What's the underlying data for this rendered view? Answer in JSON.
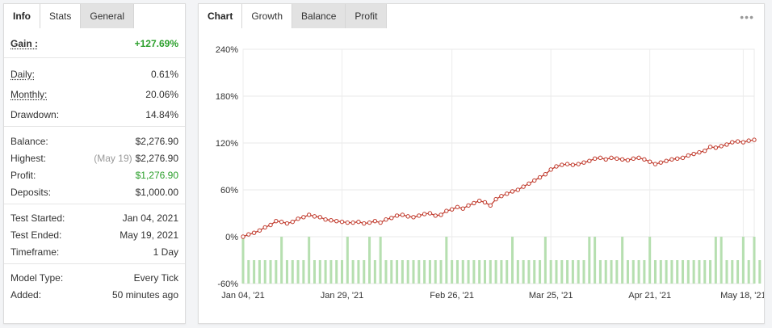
{
  "left_tabs": [
    {
      "label": "Info"
    },
    {
      "label": "Stats"
    },
    {
      "label": "General"
    }
  ],
  "stats": {
    "gain": {
      "label": "Gain :",
      "value": "+127.69%"
    },
    "daily": {
      "label": "Daily:",
      "value": "0.61%"
    },
    "monthly": {
      "label": "Monthly:",
      "value": "20.06%"
    },
    "drawdown": {
      "label": "Drawdown:",
      "value": "14.84%"
    },
    "balance": {
      "label": "Balance:",
      "value": "$2,276.90"
    },
    "highest": {
      "label": "Highest:",
      "note": "(May 19)",
      "value": "$2,276.90"
    },
    "profit": {
      "label": "Profit:",
      "value": "$1,276.90"
    },
    "deposits": {
      "label": "Deposits:",
      "value": "$1,000.00"
    },
    "test_started": {
      "label": "Test Started:",
      "value": "Jan 04, 2021"
    },
    "test_ended": {
      "label": "Test Ended:",
      "value": "May 19, 2021"
    },
    "timeframe": {
      "label": "Timeframe:",
      "value": "1 Day"
    },
    "model_type": {
      "label": "Model Type:",
      "value": "Every Tick"
    },
    "added": {
      "label": "Added:",
      "value": "50 minutes ago"
    }
  },
  "right_tabs": [
    {
      "label": "Chart"
    },
    {
      "label": "Growth"
    },
    {
      "label": "Balance"
    },
    {
      "label": "Profit"
    }
  ],
  "menu_icon": "ellipsis-icon",
  "colors": {
    "gain_green": "#2ca02c",
    "line_red": "#c0392b",
    "bar_green": "#b6dfb0"
  },
  "chart_data": {
    "type": "line",
    "ylim": [
      -60,
      240
    ],
    "yticks": [
      "240%",
      "180%",
      "120%",
      "60%",
      "0%",
      "-60%"
    ],
    "ytick_values": [
      240,
      180,
      120,
      60,
      0,
      -60
    ],
    "xtick_labels": [
      "Jan 04, '21",
      "Jan 29, '21",
      "Feb 26, '21",
      "Mar 25, '21",
      "Apr 21, '21",
      "May 18, '21"
    ],
    "xtick_index": [
      0,
      18,
      38,
      56,
      74,
      91
    ],
    "series": [
      {
        "type": "line",
        "values": [
          0,
          3,
          5,
          8,
          12,
          15,
          20,
          19,
          17,
          19,
          23,
          25,
          28,
          26,
          25,
          22,
          21,
          20,
          19,
          18,
          18,
          19,
          17,
          18,
          20,
          18,
          22,
          24,
          27,
          28,
          26,
          25,
          27,
          29,
          30,
          27,
          28,
          33,
          35,
          38,
          36,
          40,
          43,
          46,
          44,
          40,
          48,
          52,
          55,
          58,
          60,
          64,
          68,
          72,
          76,
          80,
          86,
          90,
          92,
          93,
          92,
          93,
          95,
          97,
          100,
          101,
          99,
          101,
          100,
          99,
          98,
          100,
          101,
          99,
          96,
          93,
          95,
          97,
          99,
          100,
          101,
          104,
          106,
          108,
          110,
          115,
          114,
          116,
          118,
          121,
          122,
          121,
          123,
          124
        ]
      },
      {
        "type": "bar",
        "values": [
          0,
          -30,
          -30,
          -30,
          -30,
          -30,
          -30,
          0,
          -30,
          -30,
          -30,
          -30,
          0,
          -30,
          -30,
          -30,
          -30,
          -30,
          -30,
          0,
          -30,
          -30,
          -30,
          0,
          -30,
          0,
          -30,
          -30,
          -30,
          -30,
          -30,
          -30,
          -30,
          -30,
          -30,
          -30,
          -30,
          0,
          -30,
          -30,
          -30,
          -30,
          -30,
          -30,
          -30,
          -30,
          -30,
          -30,
          -30,
          0,
          -30,
          -30,
          -30,
          -30,
          -30,
          0,
          -30,
          -30,
          -30,
          -30,
          -30,
          -30,
          -30,
          0,
          0,
          -30,
          -30,
          -30,
          -30,
          0,
          -30,
          -30,
          -30,
          -30,
          0,
          -30,
          -30,
          -30,
          -30,
          -30,
          -30,
          -30,
          -30,
          -30,
          -30,
          -30,
          0,
          0,
          -30,
          -30,
          -30,
          0,
          -30,
          0,
          -30
        ]
      }
    ]
  }
}
